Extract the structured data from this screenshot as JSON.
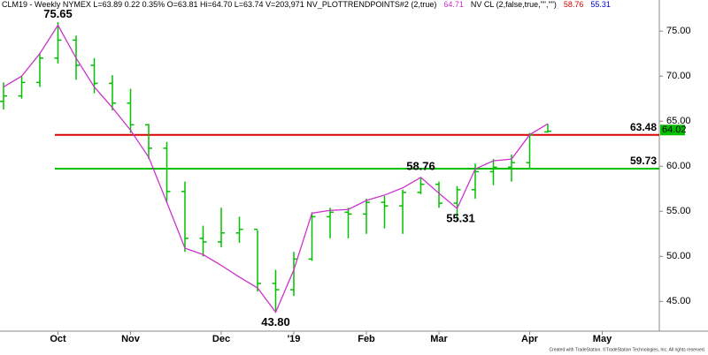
{
  "chart_data": {
    "type": "ohlc",
    "header": [
      {
        "text": "CLM19 - Weekly  NYMEX  L=63.89  0.22  0.35%  O=63.81  Hi=64.70  L=63.74  V=203,971  NV_PLOTTRENDPOINTS#2 (2,true)",
        "color": "#000000"
      },
      {
        "text": "64.71",
        "color": "#cc33cc"
      },
      {
        "text": "NV CL (2,false,true,\"\",\"\")",
        "color": "#000000"
      },
      {
        "text": "58.76",
        "color": "#dd0000"
      },
      {
        "text": "55.31",
        "color": "#0000cc"
      }
    ],
    "categories": [
      null,
      null,
      null,
      "Oct",
      null,
      null,
      null,
      "Nov",
      null,
      null,
      null,
      null,
      "Dec",
      null,
      null,
      null,
      "'19",
      null,
      null,
      null,
      "Feb",
      null,
      null,
      null,
      "Mar",
      null,
      null,
      null,
      null,
      "Apr",
      null,
      null,
      null,
      "May"
    ],
    "ohlc": {
      "color": "#00c000",
      "open": [
        67.2,
        67.8,
        69.3,
        72.0,
        74.0,
        71.2,
        69.2,
        67.0,
        64.6,
        62.0,
        57.2,
        52.0,
        51.6,
        52.6,
        53.0,
        47.0,
        46.3,
        49.7,
        54.4,
        54.9,
        54.7,
        56.0,
        55.6,
        57.1,
        58.0,
        55.9,
        57.4,
        59.4,
        59.9,
        60.4,
        63.81
      ],
      "high": [
        69.3,
        70.0,
        72.5,
        76.0,
        74.5,
        72.0,
        70.1,
        68.6,
        64.7,
        62.7,
        58.3,
        53.4,
        55.4,
        54.4,
        52.9,
        48.5,
        50.5,
        54.9,
        55.4,
        55.4,
        56.4,
        56.7,
        57.4,
        58.8,
        58.3,
        57.8,
        60.3,
        60.8,
        61.3,
        63.7,
        64.7
      ],
      "low": [
        66.3,
        67.5,
        68.8,
        71.4,
        69.6,
        68.1,
        66.2,
        63.7,
        60.8,
        55.9,
        50.5,
        50.0,
        51.0,
        51.5,
        46.1,
        43.8,
        45.6,
        49.5,
        52.0,
        52.0,
        52.5,
        53.1,
        52.5,
        56.9,
        55.4,
        53.9,
        56.4,
        57.9,
        58.3,
        59.8,
        63.74
      ],
      "close": [
        67.8,
        69.3,
        72.0,
        74.0,
        71.2,
        69.2,
        67.0,
        64.6,
        62.0,
        57.2,
        52.0,
        51.6,
        52.6,
        53.0,
        47.0,
        46.3,
        49.7,
        54.4,
        54.9,
        54.7,
        56.0,
        55.6,
        57.1,
        58.0,
        55.9,
        57.4,
        59.4,
        59.9,
        60.4,
        63.5,
        63.89
      ]
    },
    "trend": {
      "color": "#cc33cc",
      "values": [
        68.8,
        70.0,
        72.5,
        75.65,
        72.0,
        68.8,
        66.5,
        64.0,
        61.0,
        56.0,
        50.9,
        50.2,
        49.0,
        47.7,
        46.5,
        43.8,
        48.5,
        54.8,
        55.1,
        55.2,
        56.2,
        56.8,
        57.6,
        58.76,
        57.0,
        55.31,
        59.7,
        60.6,
        60.8,
        63.5,
        64.71,
        null,
        null,
        null
      ]
    },
    "annotations": [
      "75.65",
      "43.80",
      "58.76",
      "55.31"
    ],
    "levels": [
      {
        "value": 63.48,
        "label": "63.48",
        "color": "#dd0000"
      },
      {
        "value": 59.73,
        "label": "59.73",
        "color": "#00c000"
      }
    ],
    "last_price": 64.02,
    "ylim": [
      41.7,
      78.45
    ],
    "yticks": [
      {
        "value": 45,
        "label": "45.00"
      },
      {
        "value": 50,
        "label": "50.00"
      },
      {
        "value": 55,
        "label": "55.00"
      },
      {
        "value": 60,
        "label": "60.00"
      },
      {
        "value": 65,
        "label": "65.00"
      },
      {
        "value": 70,
        "label": "70.00"
      },
      {
        "value": 75,
        "label": "75.00"
      }
    ],
    "footer": "Created with TradeStation. ©TradeStation Technologies, Inc. All rights reserved."
  }
}
